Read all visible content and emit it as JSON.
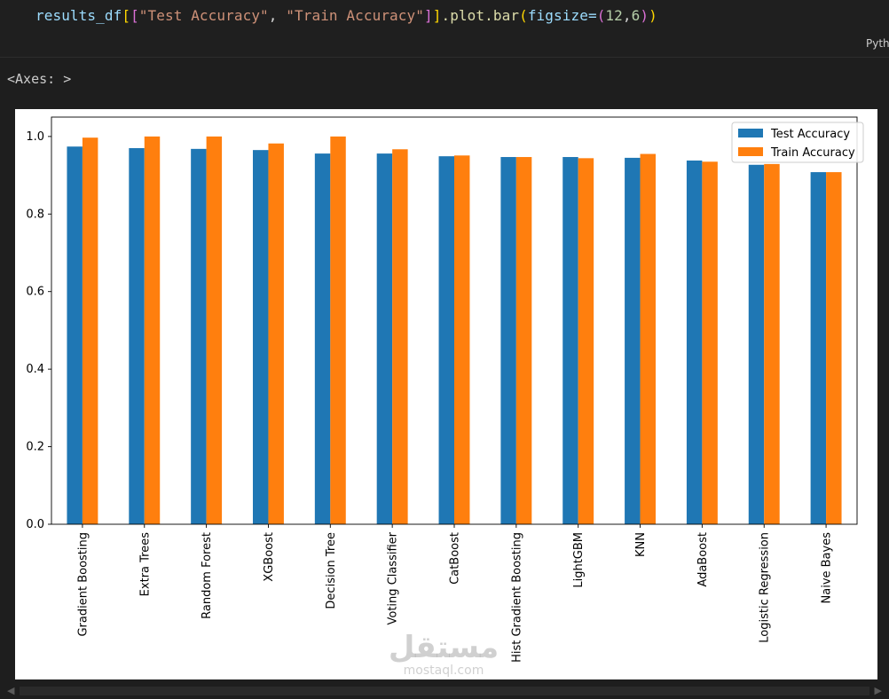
{
  "code": {
    "var": "results_df",
    "open1": "[",
    "open2": "[",
    "str1": "\"Test Accuracy\"",
    "comma": ", ",
    "str2": "\"Train Accuracy\"",
    "close2": "]",
    "close1": "]",
    "method": ".plot.bar",
    "open3": "(",
    "kw": "figsize=",
    "open4": "(",
    "n1": "12",
    "comma2": ",",
    "n2": "6",
    "close4": ")",
    "close3": ")"
  },
  "language_label": "Python",
  "output_text": "<Axes: >",
  "watermark": {
    "logo": "مستقل",
    "url": "mostaql.com"
  },
  "colors": {
    "test": "#1f77b4",
    "train": "#ff7f0e"
  },
  "chart_data": {
    "type": "bar",
    "categories": [
      "Gradient Boosting",
      "Extra Trees",
      "Random Forest",
      "XGBoost",
      "Decision Tree",
      "Voting Classifier",
      "CatBoost",
      "Hist Gradient Boosting",
      "LightGBM",
      "KNN",
      "AdaBoost",
      "Logistic Regression",
      "Naive Bayes"
    ],
    "series": [
      {
        "name": "Test Accuracy",
        "values": [
          0.974,
          0.97,
          0.968,
          0.965,
          0.956,
          0.956,
          0.949,
          0.947,
          0.947,
          0.945,
          0.938,
          0.927,
          0.908
        ]
      },
      {
        "name": "Train Accuracy",
        "values": [
          0.997,
          1.0,
          1.0,
          0.982,
          1.0,
          0.967,
          0.951,
          0.947,
          0.944,
          0.955,
          0.935,
          0.929,
          0.908
        ]
      }
    ],
    "yticks": [
      "0.0",
      "0.2",
      "0.4",
      "0.6",
      "0.8",
      "1.0"
    ],
    "ylim": [
      0,
      1.05
    ],
    "legend_position": "top-right",
    "grid": false
  }
}
